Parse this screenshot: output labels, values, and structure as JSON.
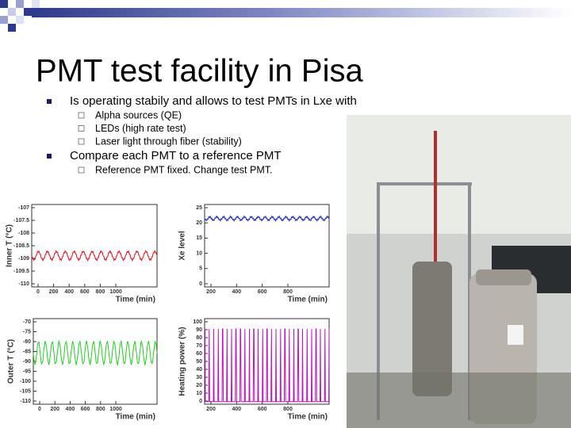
{
  "header": {
    "title": "PMT test facility in Pisa"
  },
  "bullets": [
    {
      "text": "Is operating stabily and allows to test PMTs in Lxe with",
      "sub": [
        "Alpha sources (QE)",
        "LEDs (high rate test)",
        "Laser light through fiber (stability)"
      ]
    },
    {
      "text": "Compare each PMT to a reference PMT",
      "sub": [
        "Reference PMT fixed. Change test PMT."
      ]
    }
  ],
  "plots": [
    {
      "y_label": "Inner T (°C)",
      "x_label": "Time (min)",
      "yticks": [
        "-107",
        "-107.5",
        "-108",
        "-108.5",
        "-109",
        "-109.5",
        "-110"
      ],
      "xticks": [
        "0",
        "200",
        "400",
        "600",
        "800",
        "1000"
      ]
    },
    {
      "y_label": "Xe level",
      "x_label": "Time (min)",
      "yticks": [
        "25",
        "20",
        "15",
        "10",
        "5",
        "0"
      ],
      "xticks": [
        "200",
        "400",
        "600",
        "800"
      ]
    },
    {
      "y_label": "Outer T (°C)",
      "x_label": "Time (min)",
      "yticks": [
        "-70",
        "-75",
        "-80",
        "-85",
        "-90",
        "-95",
        "-100",
        "-105",
        "-110"
      ],
      "xticks": [
        "0",
        "200",
        "400",
        "600",
        "800",
        "1000"
      ]
    },
    {
      "y_label": "Heating power (%)",
      "x_label": "Time (min)",
      "yticks": [
        "100",
        "90",
        "80",
        "70",
        "60",
        "50",
        "40",
        "30",
        "20",
        "10",
        "0"
      ],
      "xticks": [
        "200",
        "400",
        "600",
        "800"
      ]
    }
  ]
}
